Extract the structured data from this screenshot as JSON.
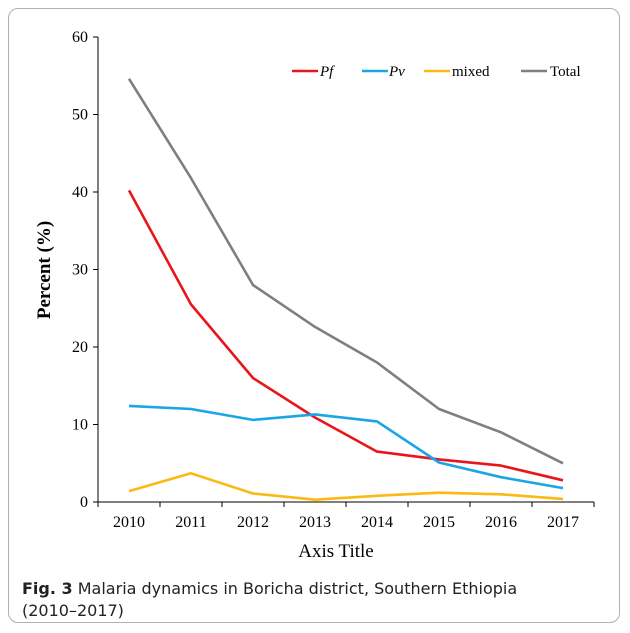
{
  "chart_data": {
    "type": "line",
    "categories": [
      "2010",
      "2011",
      "2012",
      "2013",
      "2014",
      "2015",
      "2016",
      "2017"
    ],
    "series": [
      {
        "name": "Pf",
        "italic": true,
        "color": "#e8161b",
        "values": [
          40.2,
          25.5,
          16.0,
          10.9,
          6.5,
          5.5,
          4.7,
          2.8
        ]
      },
      {
        "name": "Pv",
        "italic": true,
        "color": "#1aa5e6",
        "values": [
          12.4,
          12.0,
          10.6,
          11.3,
          10.4,
          5.1,
          3.2,
          1.8
        ]
      },
      {
        "name": "mixed",
        "italic": false,
        "color": "#fbb913",
        "values": [
          1.4,
          3.7,
          1.1,
          0.3,
          0.8,
          1.2,
          1.0,
          0.4
        ]
      },
      {
        "name": "Total",
        "italic": false,
        "color": "#7f7f7f",
        "values": [
          54.6,
          41.8,
          28.0,
          22.6,
          18.0,
          12.0,
          9.0,
          5.0
        ]
      }
    ],
    "ylim": [
      0,
      60
    ],
    "yticks": [
      "0",
      "10",
      "20",
      "30",
      "40",
      "50",
      "60"
    ],
    "xlabel": "Axis Title",
    "ylabel": "Percent (%)",
    "legend_position": "top-right",
    "grid": false
  },
  "caption": {
    "label": "Fig. 3",
    "text": "Malaria dynamics in Boricha district, Southern Ethiopia",
    "text_line2": "(2010–2017)"
  }
}
